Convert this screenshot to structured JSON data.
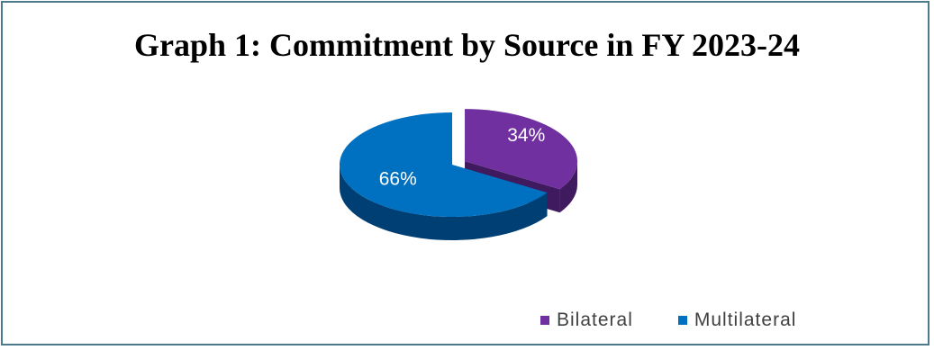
{
  "chart_data": {
    "type": "pie",
    "title": "Graph 1: Commitment by Source in FY 2023-24",
    "categories": [
      "Bilateral",
      "Multilateral"
    ],
    "values": [
      34,
      66
    ],
    "labels": [
      "34%",
      "66%"
    ],
    "colors": [
      "#7030A0",
      "#0070C0"
    ],
    "side_colors": [
      "#3f1a5e",
      "#003f73"
    ],
    "exploded": "Bilateral",
    "legend_position": "bottom-right"
  }
}
